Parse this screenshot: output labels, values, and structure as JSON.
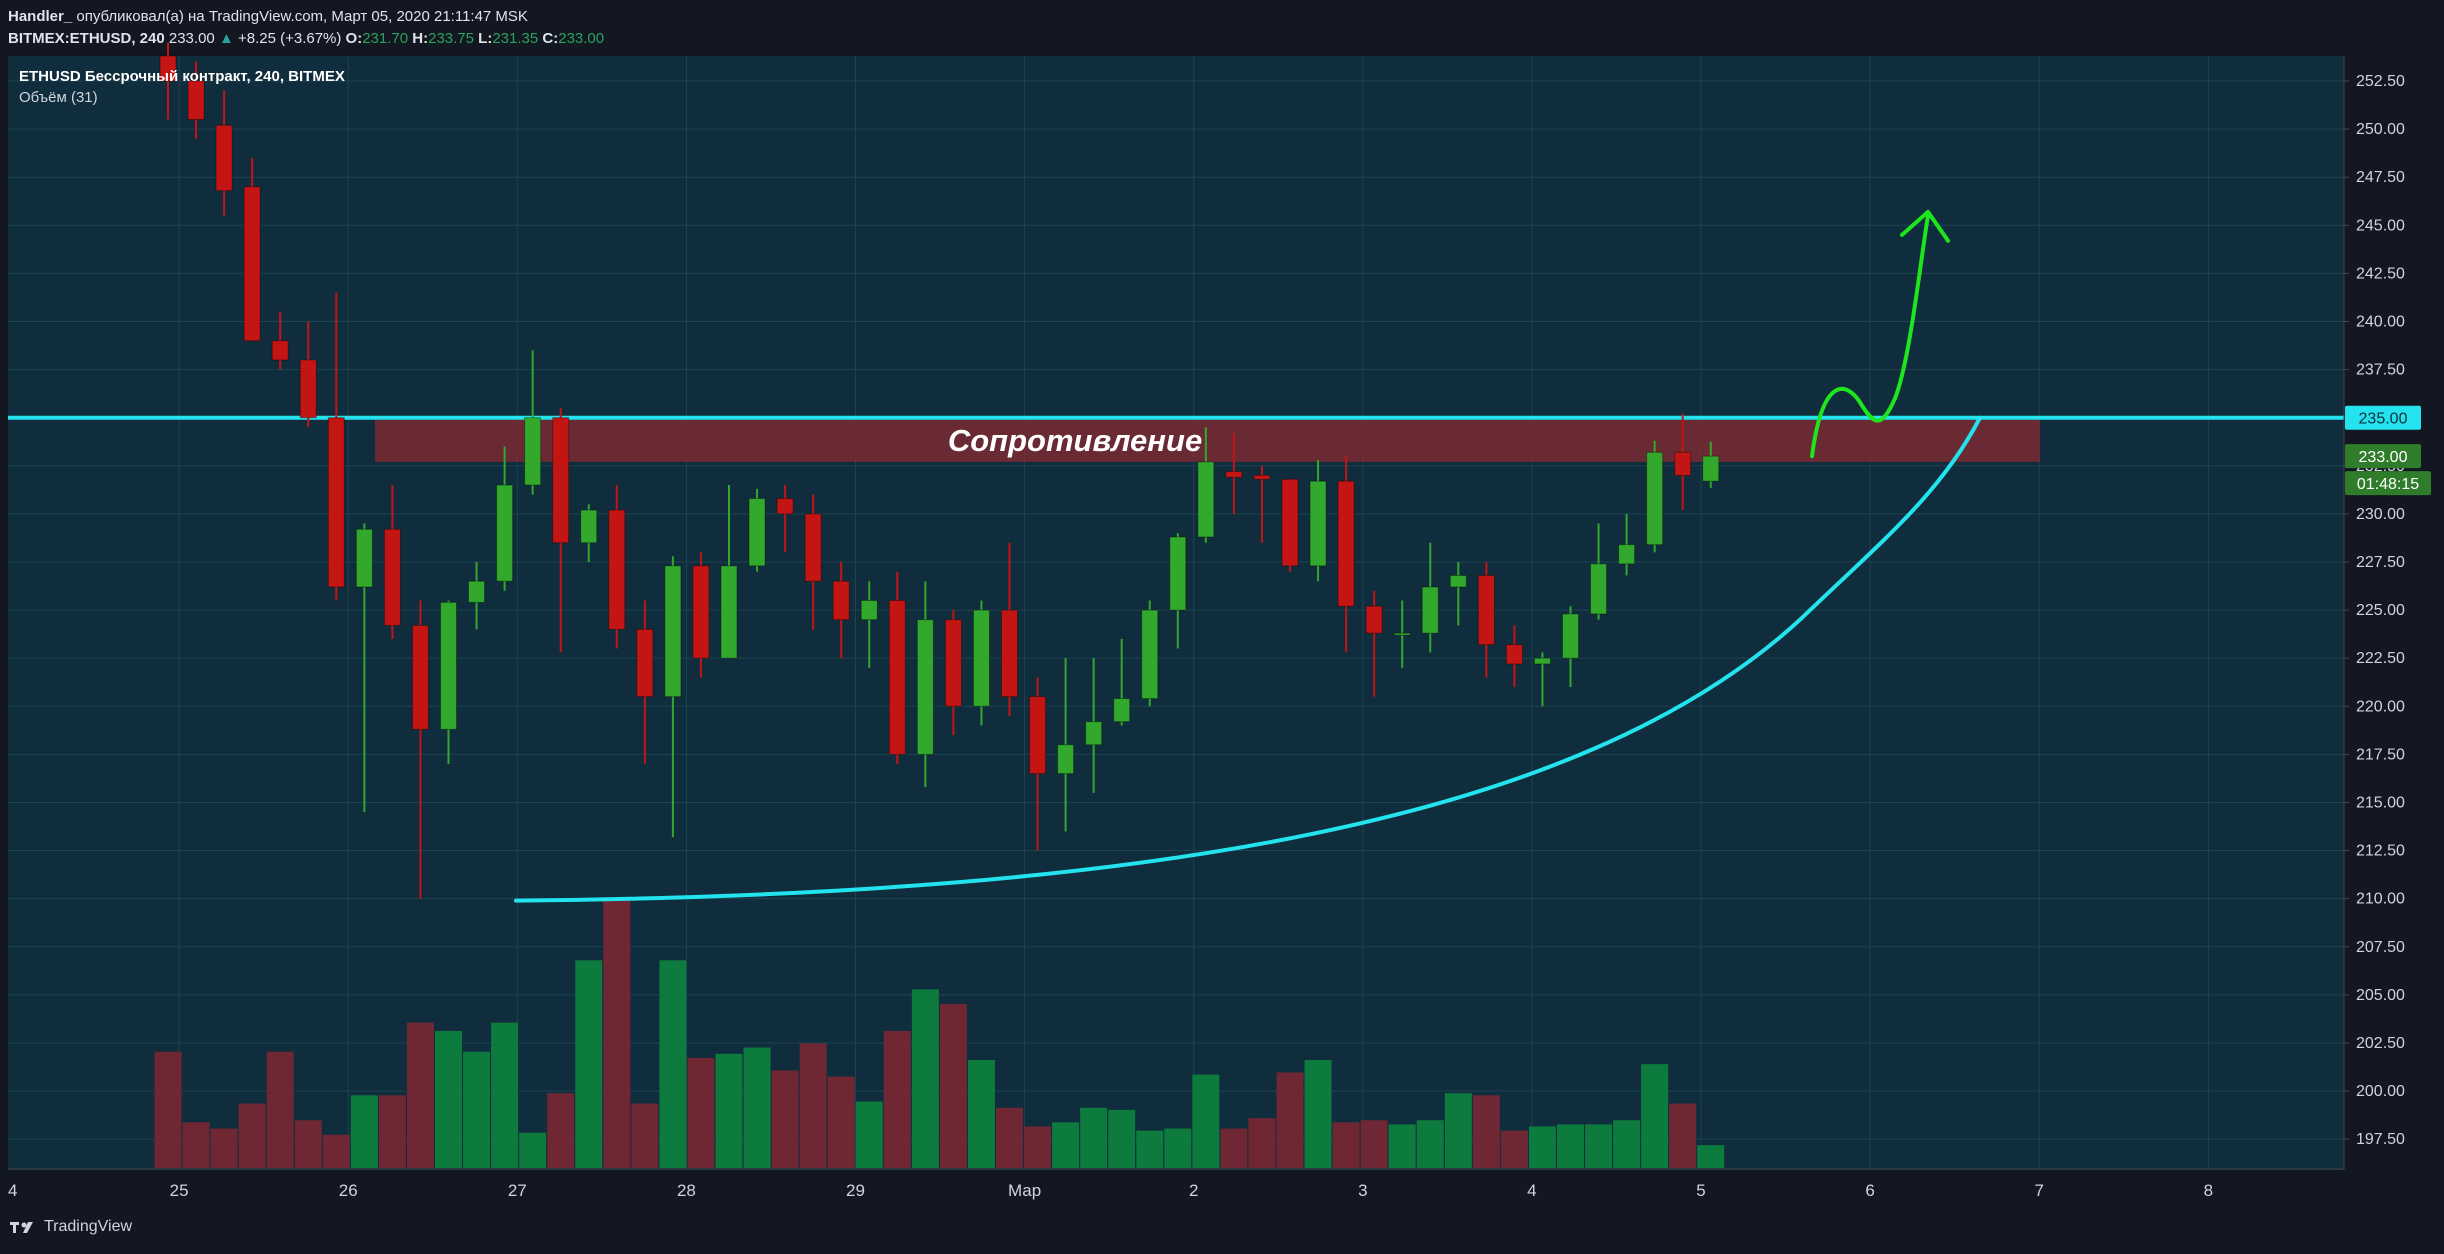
{
  "header": {
    "line1_user": "Handler_",
    "line1_rest": "опубликовал(а) на TradingView.com, Март 05, 2020 21:11:47 MSK",
    "symbol": "BITMEX:ETHUSD, 240",
    "last": "233.00",
    "change_arrow": "▲",
    "change": "+8.25 (+3.67%)",
    "o_label": "O:",
    "o": "231.70",
    "h_label": "H:",
    "h": "233.75",
    "l_label": "L:",
    "l": "231.35",
    "c_label": "C:",
    "c": "233.00"
  },
  "legend": {
    "title": "ETHUSD Бессрочный контракт, 240, BITMEX",
    "volume": "Объём (31)"
  },
  "footer": {
    "brand": "TradingView",
    "logo_icon": "tradingview-logo-icon"
  },
  "colors": {
    "background": "#0f2d3c",
    "up": "#32a82c",
    "down": "#c41515",
    "vol_up": "#0d7a3e",
    "vol_down": "#6e2733",
    "resistance": "#22e3ee",
    "zone": "#7a2a31",
    "arrow": "#1ee61e"
  },
  "chart_data": {
    "type": "candlestick",
    "y_range": [
      196.0,
      253.8
    ],
    "y_ticks": [
      "252.50",
      "250.00",
      "247.50",
      "245.00",
      "242.50",
      "240.00",
      "237.50",
      "235.00",
      "232.50",
      "230.00",
      "227.50",
      "225.00",
      "222.50",
      "220.00",
      "217.50",
      "215.00",
      "212.50",
      "210.00",
      "207.50",
      "205.00",
      "202.50",
      "200.00",
      "197.50"
    ],
    "x_labels": [
      "4",
      "25",
      "26",
      "27",
      "28",
      "29",
      "Мар",
      "2",
      "3",
      "4",
      "5",
      "6",
      "7",
      "8"
    ],
    "candles": [
      {
        "o": 253.8,
        "h": 254.5,
        "l": 250.5,
        "c": 252.5
      },
      {
        "o": 252.5,
        "h": 253.5,
        "l": 249.5,
        "c": 250.5
      },
      {
        "o": 250.2,
        "h": 252.0,
        "l": 245.5,
        "c": 246.8
      },
      {
        "o": 247.0,
        "h": 248.5,
        "l": 239.5,
        "c": 239.0
      },
      {
        "o": 239.0,
        "h": 240.5,
        "l": 237.5,
        "c": 238.0
      },
      {
        "o": 238.0,
        "h": 240.0,
        "l": 234.5,
        "c": 235.0
      },
      {
        "o": 235.0,
        "h": 241.5,
        "l": 225.5,
        "c": 226.2
      },
      {
        "o": 226.2,
        "h": 229.5,
        "l": 214.5,
        "c": 229.2
      },
      {
        "o": 229.2,
        "h": 231.5,
        "l": 223.5,
        "c": 224.2
      },
      {
        "o": 224.2,
        "h": 225.5,
        "l": 210.0,
        "c": 218.8
      },
      {
        "o": 218.8,
        "h": 225.5,
        "l": 217.0,
        "c": 225.4
      },
      {
        "o": 225.4,
        "h": 227.5,
        "l": 224.0,
        "c": 226.5
      },
      {
        "o": 226.5,
        "h": 233.5,
        "l": 226.0,
        "c": 231.5
      },
      {
        "o": 231.5,
        "h": 238.5,
        "l": 231.0,
        "c": 235.0
      },
      {
        "o": 235.0,
        "h": 235.5,
        "l": 222.8,
        "c": 228.5
      },
      {
        "o": 228.5,
        "h": 230.5,
        "l": 227.5,
        "c": 230.2
      },
      {
        "o": 230.2,
        "h": 231.5,
        "l": 223.0,
        "c": 224.0
      },
      {
        "o": 224.0,
        "h": 225.5,
        "l": 217.0,
        "c": 220.5
      },
      {
        "o": 220.5,
        "h": 227.8,
        "l": 213.2,
        "c": 227.3
      },
      {
        "o": 227.3,
        "h": 228.0,
        "l": 221.5,
        "c": 222.5
      },
      {
        "o": 222.5,
        "h": 231.5,
        "l": 222.5,
        "c": 227.3
      },
      {
        "o": 227.3,
        "h": 231.3,
        "l": 227.0,
        "c": 230.8
      },
      {
        "o": 230.8,
        "h": 231.5,
        "l": 228.0,
        "c": 230.0
      },
      {
        "o": 230.0,
        "h": 231.0,
        "l": 224.0,
        "c": 226.5
      },
      {
        "o": 226.5,
        "h": 227.5,
        "l": 222.5,
        "c": 224.5
      },
      {
        "o": 224.5,
        "h": 226.5,
        "l": 222.0,
        "c": 225.5
      },
      {
        "o": 225.5,
        "h": 227.0,
        "l": 217.0,
        "c": 217.5
      },
      {
        "o": 217.5,
        "h": 226.5,
        "l": 215.8,
        "c": 224.5
      },
      {
        "o": 224.5,
        "h": 225.0,
        "l": 218.5,
        "c": 220.0
      },
      {
        "o": 220.0,
        "h": 225.5,
        "l": 219.0,
        "c": 225.0
      },
      {
        "o": 225.0,
        "h": 228.5,
        "l": 219.5,
        "c": 220.5
      },
      {
        "o": 220.5,
        "h": 221.5,
        "l": 212.5,
        "c": 216.5
      },
      {
        "o": 216.5,
        "h": 222.5,
        "l": 213.5,
        "c": 218.0
      },
      {
        "o": 218.0,
        "h": 222.5,
        "l": 215.5,
        "c": 219.2
      },
      {
        "o": 219.2,
        "h": 223.5,
        "l": 219.0,
        "c": 220.4
      },
      {
        "o": 220.4,
        "h": 225.5,
        "l": 220.0,
        "c": 225.0
      },
      {
        "o": 225.0,
        "h": 229.0,
        "l": 223.0,
        "c": 228.8
      },
      {
        "o": 228.8,
        "h": 234.5,
        "l": 228.5,
        "c": 232.7
      },
      {
        "o": 232.2,
        "h": 234.2,
        "l": 230.0,
        "c": 231.9
      },
      {
        "o": 232.0,
        "h": 232.5,
        "l": 228.5,
        "c": 231.8
      },
      {
        "o": 231.8,
        "h": 231.8,
        "l": 227.0,
        "c": 227.3
      },
      {
        "o": 227.3,
        "h": 232.8,
        "l": 226.5,
        "c": 231.7
      },
      {
        "o": 231.7,
        "h": 233.0,
        "l": 222.8,
        "c": 225.2
      },
      {
        "o": 225.2,
        "h": 226.0,
        "l": 220.5,
        "c": 223.8
      },
      {
        "o": 223.8,
        "h": 225.5,
        "l": 222.0,
        "c": 223.8
      },
      {
        "o": 223.8,
        "h": 228.5,
        "l": 222.8,
        "c": 226.2
      },
      {
        "o": 226.2,
        "h": 227.5,
        "l": 224.2,
        "c": 226.8
      },
      {
        "o": 226.8,
        "h": 227.5,
        "l": 221.5,
        "c": 223.2
      },
      {
        "o": 223.2,
        "h": 224.2,
        "l": 221.0,
        "c": 222.2
      },
      {
        "o": 222.2,
        "h": 222.8,
        "l": 220.0,
        "c": 222.5
      },
      {
        "o": 222.5,
        "h": 225.2,
        "l": 221.0,
        "c": 224.8
      },
      {
        "o": 224.8,
        "h": 229.5,
        "l": 224.5,
        "c": 227.4
      },
      {
        "o": 227.4,
        "h": 230.0,
        "l": 226.8,
        "c": 228.4
      },
      {
        "o": 228.4,
        "h": 233.8,
        "l": 228.0,
        "c": 233.2
      },
      {
        "o": 233.2,
        "h": 235.2,
        "l": 230.2,
        "c": 232.0
      },
      {
        "o": 231.7,
        "h": 233.75,
        "l": 231.35,
        "c": 233.0
      }
    ],
    "volume": [
      2.8,
      1.1,
      0.95,
      1.55,
      2.8,
      1.15,
      0.8,
      1.75,
      1.75,
      3.5,
      3.3,
      2.8,
      3.5,
      0.85,
      1.8,
      5.0,
      6.5,
      1.55,
      5.0,
      2.65,
      2.75,
      2.9,
      2.35,
      3.0,
      2.2,
      1.6,
      3.3,
      4.3,
      3.95,
      2.6,
      1.45,
      1.0,
      1.1,
      1.45,
      1.4,
      0.9,
      0.95,
      2.25,
      0.95,
      1.2,
      2.3,
      2.6,
      1.1,
      1.15,
      1.05,
      1.15,
      1.8,
      1.75,
      0.9,
      1.0,
      1.05,
      1.05,
      1.15,
      2.5,
      1.55,
      0.55
    ],
    "volume_max": 6.5,
    "resistance": 235.0,
    "zone": [
      232.7,
      234.9
    ],
    "zone_label": "Сопротивление",
    "price_labels": {
      "resistance": "235.00",
      "last": "233.00",
      "timer": "01:48:15"
    }
  }
}
